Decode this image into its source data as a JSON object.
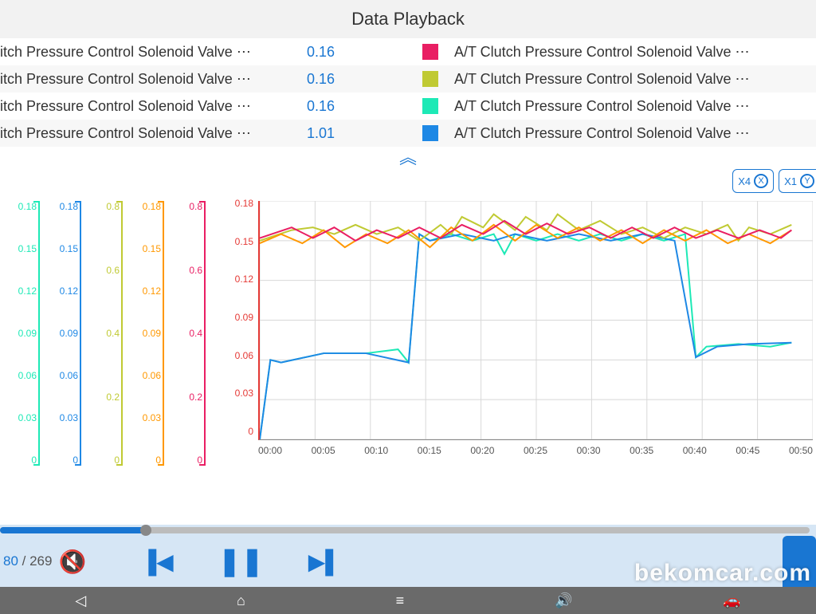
{
  "header": {
    "title": "Data Playback"
  },
  "rows": [
    {
      "label_left": "itch Pressure Control Solenoid Valve ⋯",
      "value": "0.16",
      "swatch": "#e91e63",
      "label_right": "A/T Clutch Pressure Control Solenoid Valve ⋯"
    },
    {
      "label_left": "itch Pressure Control Solenoid Valve ⋯",
      "value": "0.16",
      "swatch": "#c0ca33",
      "label_right": "A/T Clutch Pressure Control Solenoid Valve ⋯"
    },
    {
      "label_left": "itch Pressure Control Solenoid Valve ⋯",
      "value": "0.16",
      "swatch": "#1de9b6",
      "label_right": "A/T Clutch Pressure Control Solenoid Valve ⋯"
    },
    {
      "label_left": "itch Pressure Control Solenoid Valve ⋯",
      "value": "1.01",
      "swatch": "#1e88e5",
      "label_right": "A/T Clutch Pressure Control Solenoid Valve ⋯"
    }
  ],
  "collapse_glyph": "︽",
  "zoom": {
    "btn1": "X4",
    "btn2": "X1",
    "icon1": "X",
    "icon2": "Y"
  },
  "mini_axes": [
    {
      "color": "#1de9b6",
      "ticks": [
        "0.18",
        "0.15",
        "0.12",
        "0.09",
        "0.06",
        "0.03",
        "0"
      ]
    },
    {
      "color": "#1e88e5",
      "ticks": [
        "0.18",
        "0.15",
        "0.12",
        "0.09",
        "0.06",
        "0.03",
        "0"
      ]
    },
    {
      "color": "#c0ca33",
      "ticks": [
        "0.8",
        "",
        "0.6",
        "",
        "0.4",
        "",
        "0.2",
        "",
        "0"
      ]
    },
    {
      "color": "#ff9800",
      "ticks": [
        "0.18",
        "0.15",
        "0.12",
        "0.09",
        "0.06",
        "0.03",
        "0"
      ]
    },
    {
      "color": "#e91e63",
      "ticks": [
        "0.8",
        "",
        "0.6",
        "",
        "0.4",
        "",
        "0.2",
        "",
        "0"
      ]
    }
  ],
  "main_chart": {
    "y_ticks": [
      "0.18",
      "0.15",
      "0.12",
      "0.09",
      "0.06",
      "0.03",
      "0"
    ],
    "y_color": "#e53935",
    "x_ticks": [
      "00:00",
      "00:05",
      "00:10",
      "00:15",
      "00:20",
      "00:25",
      "00:30",
      "00:35",
      "00:40",
      "00:45",
      "00:50"
    ],
    "ylim": [
      0,
      0.18
    ],
    "grid_color": "#d8d8d8",
    "background": "#ffffff",
    "series": [
      {
        "name": "teal",
        "color": "#1de9b6",
        "width": 2,
        "points": [
          [
            0,
            0
          ],
          [
            1,
            0.06
          ],
          [
            2,
            0.058
          ],
          [
            6,
            0.065
          ],
          [
            10,
            0.065
          ],
          [
            13,
            0.068
          ],
          [
            14,
            0.058
          ],
          [
            15,
            0.155
          ],
          [
            16,
            0.15
          ],
          [
            18,
            0.155
          ],
          [
            20,
            0.15
          ],
          [
            22,
            0.155
          ],
          [
            23,
            0.14
          ],
          [
            24,
            0.155
          ],
          [
            26,
            0.15
          ],
          [
            28,
            0.155
          ],
          [
            30,
            0.15
          ],
          [
            32,
            0.155
          ],
          [
            34,
            0.15
          ],
          [
            36,
            0.155
          ],
          [
            38,
            0.15
          ],
          [
            40,
            0.155
          ],
          [
            41,
            0.062
          ],
          [
            42,
            0.07
          ],
          [
            45,
            0.072
          ],
          [
            48,
            0.07
          ],
          [
            50,
            0.073
          ]
        ]
      },
      {
        "name": "blue",
        "color": "#1e88e5",
        "width": 2,
        "points": [
          [
            0,
            0
          ],
          [
            1,
            0.06
          ],
          [
            2,
            0.058
          ],
          [
            6,
            0.065
          ],
          [
            10,
            0.065
          ],
          [
            14,
            0.058
          ],
          [
            15,
            0.155
          ],
          [
            16,
            0.15
          ],
          [
            19,
            0.155
          ],
          [
            22,
            0.15
          ],
          [
            24,
            0.155
          ],
          [
            27,
            0.15
          ],
          [
            30,
            0.155
          ],
          [
            33,
            0.15
          ],
          [
            36,
            0.155
          ],
          [
            39,
            0.15
          ],
          [
            41,
            0.062
          ],
          [
            43,
            0.07
          ],
          [
            46,
            0.072
          ],
          [
            50,
            0.073
          ]
        ]
      },
      {
        "name": "yellow",
        "color": "#c0ca33",
        "width": 2,
        "points": [
          [
            0,
            0.15
          ],
          [
            3,
            0.158
          ],
          [
            5,
            0.16
          ],
          [
            7,
            0.155
          ],
          [
            9,
            0.162
          ],
          [
            11,
            0.155
          ],
          [
            13,
            0.16
          ],
          [
            15,
            0.15
          ],
          [
            17,
            0.162
          ],
          [
            18,
            0.155
          ],
          [
            19,
            0.168
          ],
          [
            21,
            0.16
          ],
          [
            22,
            0.17
          ],
          [
            24,
            0.158
          ],
          [
            25,
            0.168
          ],
          [
            27,
            0.158
          ],
          [
            28,
            0.17
          ],
          [
            30,
            0.158
          ],
          [
            32,
            0.165
          ],
          [
            34,
            0.155
          ],
          [
            36,
            0.16
          ],
          [
            38,
            0.152
          ],
          [
            40,
            0.16
          ],
          [
            42,
            0.155
          ],
          [
            44,
            0.162
          ],
          [
            45,
            0.15
          ],
          [
            46,
            0.16
          ],
          [
            48,
            0.155
          ],
          [
            50,
            0.162
          ]
        ]
      },
      {
        "name": "orange",
        "color": "#ff9800",
        "width": 2,
        "points": [
          [
            0,
            0.148
          ],
          [
            2,
            0.155
          ],
          [
            4,
            0.148
          ],
          [
            6,
            0.158
          ],
          [
            8,
            0.145
          ],
          [
            10,
            0.155
          ],
          [
            12,
            0.148
          ],
          [
            14,
            0.158
          ],
          [
            16,
            0.145
          ],
          [
            18,
            0.16
          ],
          [
            20,
            0.15
          ],
          [
            22,
            0.162
          ],
          [
            24,
            0.15
          ],
          [
            26,
            0.162
          ],
          [
            28,
            0.152
          ],
          [
            30,
            0.16
          ],
          [
            32,
            0.15
          ],
          [
            34,
            0.158
          ],
          [
            36,
            0.148
          ],
          [
            38,
            0.158
          ],
          [
            40,
            0.15
          ],
          [
            42,
            0.158
          ],
          [
            44,
            0.148
          ],
          [
            46,
            0.155
          ],
          [
            48,
            0.148
          ],
          [
            50,
            0.158
          ]
        ]
      },
      {
        "name": "pink",
        "color": "#e91e63",
        "width": 2,
        "points": [
          [
            0,
            0.152
          ],
          [
            3,
            0.16
          ],
          [
            5,
            0.152
          ],
          [
            7,
            0.16
          ],
          [
            9,
            0.15
          ],
          [
            11,
            0.158
          ],
          [
            13,
            0.152
          ],
          [
            15,
            0.16
          ],
          [
            17,
            0.152
          ],
          [
            19,
            0.162
          ],
          [
            21,
            0.155
          ],
          [
            23,
            0.165
          ],
          [
            25,
            0.155
          ],
          [
            27,
            0.163
          ],
          [
            29,
            0.155
          ],
          [
            31,
            0.16
          ],
          [
            33,
            0.152
          ],
          [
            35,
            0.16
          ],
          [
            37,
            0.152
          ],
          [
            39,
            0.16
          ],
          [
            41,
            0.152
          ],
          [
            43,
            0.158
          ],
          [
            45,
            0.152
          ],
          [
            47,
            0.158
          ],
          [
            49,
            0.152
          ],
          [
            50,
            0.158
          ]
        ]
      }
    ]
  },
  "progress": {
    "percent": 18,
    "thumb_percent": 18
  },
  "frame": {
    "current": "80",
    "total": "269",
    "sep": " / "
  },
  "watermark": "bekomcar.com",
  "nav": {
    "back": "◁",
    "home": "⌂",
    "menu": "≡",
    "vol": "🔊"
  }
}
